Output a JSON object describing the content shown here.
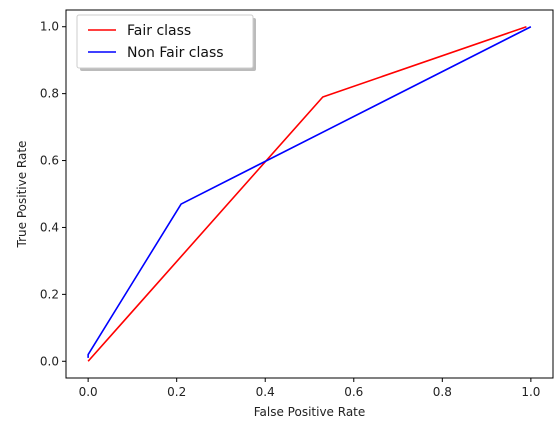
{
  "chart_data": {
    "type": "line",
    "title": "",
    "xlabel": "False Positive Rate",
    "ylabel": "True Positive Rate",
    "xlim": [
      -0.05,
      1.05
    ],
    "ylim": [
      -0.05,
      1.05
    ],
    "xticks": [
      0.0,
      0.2,
      0.4,
      0.6,
      0.8,
      1.0
    ],
    "yticks": [
      0.0,
      0.2,
      0.4,
      0.6,
      0.8,
      1.0
    ],
    "xtick_labels": [
      "0.0",
      "0.2",
      "0.4",
      "0.6",
      "0.8",
      "1.0"
    ],
    "ytick_labels": [
      "0.0",
      "0.2",
      "0.4",
      "0.6",
      "0.8",
      "1.0"
    ],
    "grid": false,
    "legend_position": "top-left",
    "series": [
      {
        "name": "Fair class",
        "color": "#ff0000",
        "points": [
          [
            0.0,
            0.0
          ],
          [
            0.53,
            0.79
          ],
          [
            0.99,
            1.0
          ]
        ]
      },
      {
        "name": "Non Fair class",
        "color": "#0000ff",
        "points": [
          [
            0.0,
            0.01
          ],
          [
            0.0,
            0.02
          ],
          [
            0.21,
            0.47
          ],
          [
            1.0,
            1.0
          ]
        ]
      }
    ]
  }
}
